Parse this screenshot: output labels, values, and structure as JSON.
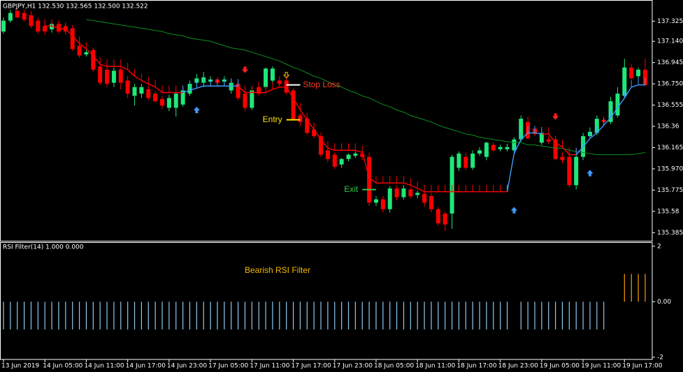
{
  "chart_data": [
    {
      "type": "candlestick",
      "title": "GBPJPY,H1  132.530 132.565 132.500 132.522",
      "categories": [
        "13 Jun 2019",
        null,
        null,
        null,
        null,
        null,
        "14 Jun 05:00",
        null,
        null,
        null,
        null,
        null,
        "14 Jun 11:00",
        null,
        null,
        null,
        null,
        null,
        "14 Jun 17:00",
        null,
        null,
        null,
        null,
        null,
        "14 Jun 23:00",
        null,
        null,
        null,
        null,
        null,
        "17 Jun 05:00",
        null,
        null,
        null,
        null,
        null,
        "17 Jun 11:00",
        null,
        null,
        null,
        null,
        null,
        "17 Jun 17:00",
        null,
        null,
        null,
        null,
        null,
        "17 Jun 23:00",
        null,
        null,
        null,
        null,
        null,
        "18 Jun 05:00",
        null,
        null,
        null,
        null,
        null,
        "18 Jun 11:00",
        null,
        null,
        null,
        null,
        null,
        "18 Jun 17:00",
        null,
        null,
        null,
        null,
        null,
        "18 Jun 23:00",
        null,
        null,
        null,
        null,
        null,
        "19 Jun 05:00",
        null,
        null,
        null,
        null,
        null,
        "19 Jun 11:00",
        null,
        null,
        null,
        null,
        null,
        "19 Jun 17:00",
        null,
        null,
        null
      ],
      "ylim": [
        135.31,
        137.5
      ],
      "yticks": [
        137.325,
        {
          "value": 137.14,
          "label": "137.140"
        },
        136.945,
        {
          "value": 136.75,
          "label": "136.750"
        },
        136.555,
        136.36,
        136.165,
        {
          "value": 135.97,
          "label": "135.970"
        },
        135.775,
        135.58,
        135.385
      ],
      "series": [
        {
          "type": "candlestick",
          "up_color": "#1ee87a",
          "down_color": "#ff0000",
          "open": [
            137.23,
            137.33,
            137.42,
            137.4,
            137.38,
            137.33,
            137.28,
            137.25,
            137.3,
            137.28,
            137.26,
            137.1,
            137.02,
            137.06,
            136.91,
            136.88,
            136.76,
            136.88,
            136.78,
            136.64,
            136.66,
            136.7,
            136.66,
            136.61,
            136.53,
            136.53,
            136.56,
            136.66,
            136.76,
            136.76,
            136.77,
            136.79,
            136.77,
            136.69,
            136.75,
            136.66,
            136.53,
            136.72,
            136.72,
            136.78,
            136.78,
            136.78,
            136.69,
            136.46,
            136.43,
            136.33,
            136.27,
            136.14,
            136.1,
            136.01,
            136.06,
            136.09,
            136.11,
            136.08,
            135.66,
            135.69,
            135.6,
            135.79,
            135.71,
            135.78,
            135.73,
            135.74,
            135.72,
            135.6,
            135.56,
            135.56,
            135.98,
            136.08,
            135.98,
            136.11,
            136.08,
            136.19,
            136.15,
            136.15,
            136.14,
            136.24,
            136.4,
            136.34,
            136.21,
            136.24,
            136.24,
            136.08,
            136.08,
            135.82,
            136.08,
            136.27,
            136.3,
            136.42,
            136.4,
            136.46,
            136.64,
            136.9,
            136.82,
            136.88
          ],
          "high": [
            137.36,
            137.43,
            137.45,
            137.43,
            137.42,
            137.36,
            137.31,
            137.32,
            137.33,
            137.3,
            137.29,
            137.12,
            137.06,
            137.08,
            136.93,
            136.92,
            136.9,
            136.9,
            136.82,
            136.75,
            136.75,
            136.74,
            136.68,
            136.64,
            136.65,
            136.68,
            136.72,
            136.78,
            136.84,
            136.86,
            136.82,
            136.81,
            136.82,
            136.8,
            136.78,
            136.68,
            136.72,
            136.77,
            136.9,
            136.91,
            136.82,
            136.82,
            136.71,
            136.48,
            136.45,
            136.35,
            136.29,
            136.16,
            136.12,
            136.07,
            136.11,
            136.13,
            136.14,
            136.12,
            135.72,
            135.72,
            135.81,
            135.82,
            135.82,
            135.8,
            135.77,
            135.76,
            135.75,
            135.62,
            135.58,
            136.1,
            136.13,
            136.12,
            136.14,
            136.17,
            136.22,
            136.21,
            136.19,
            136.2,
            136.26,
            136.46,
            136.45,
            136.36,
            136.32,
            136.27,
            136.27,
            136.12,
            136.1,
            136.11,
            136.3,
            136.35,
            136.46,
            136.45,
            136.63,
            136.72,
            136.98,
            136.93,
            136.9,
            136.98
          ],
          "low": [
            137.21,
            137.31,
            137.35,
            137.32,
            137.26,
            137.21,
            137.2,
            137.22,
            137.21,
            137.2,
            137.05,
            136.99,
            137.0,
            136.86,
            136.74,
            136.72,
            136.72,
            136.7,
            136.62,
            136.55,
            136.62,
            136.6,
            136.58,
            136.52,
            136.5,
            136.45,
            136.54,
            136.64,
            136.72,
            136.72,
            136.74,
            136.74,
            136.74,
            136.66,
            136.6,
            136.5,
            136.51,
            136.64,
            136.7,
            136.76,
            136.73,
            136.65,
            136.41,
            136.36,
            136.28,
            136.25,
            136.08,
            136.03,
            135.97,
            135.98,
            136.04,
            136.07,
            136.05,
            135.63,
            135.63,
            135.57,
            135.57,
            135.68,
            135.69,
            135.7,
            135.7,
            135.62,
            135.57,
            135.45,
            135.4,
            135.42,
            135.95,
            135.96,
            135.96,
            136.09,
            136.05,
            136.13,
            136.13,
            136.13,
            136.12,
            136.22,
            136.24,
            136.27,
            136.19,
            136.2,
            136.05,
            136.02,
            135.8,
            135.78,
            136.05,
            136.25,
            136.28,
            136.39,
            136.38,
            136.44,
            136.62,
            136.79,
            136.8,
            136.73
          ],
          "close": [
            137.33,
            137.4,
            137.36,
            137.34,
            137.28,
            137.23,
            137.23,
            137.3,
            137.23,
            137.23,
            137.07,
            137.01,
            137.04,
            136.88,
            136.76,
            136.75,
            136.87,
            136.76,
            136.66,
            136.72,
            136.72,
            136.62,
            136.59,
            136.55,
            136.62,
            136.66,
            136.69,
            136.75,
            136.8,
            136.81,
            136.79,
            136.76,
            136.79,
            136.76,
            136.62,
            136.53,
            136.69,
            136.66,
            136.89,
            136.89,
            136.75,
            136.67,
            136.42,
            136.4,
            136.3,
            136.27,
            136.1,
            136.06,
            135.99,
            136.06,
            136.1,
            136.11,
            136.08,
            135.66,
            135.69,
            135.6,
            135.79,
            135.71,
            135.79,
            135.72,
            135.75,
            135.66,
            135.6,
            135.47,
            135.46,
            136.08,
            136.11,
            135.98,
            136.11,
            136.14,
            136.21,
            136.14,
            136.17,
            136.17,
            136.24,
            136.43,
            136.25,
            136.29,
            136.3,
            136.22,
            136.06,
            136.05,
            135.82,
            136.08,
            136.27,
            136.31,
            136.43,
            136.4,
            136.59,
            136.66,
            136.9,
            136.8,
            136.88,
            136.74
          ]
        },
        {
          "type": "line",
          "color": "#0f8f1f",
          "values": [
            null,
            null,
            null,
            null,
            null,
            null,
            null,
            null,
            null,
            null,
            null,
            null,
            137.34,
            137.33,
            137.32,
            137.31,
            137.3,
            137.29,
            137.28,
            137.27,
            137.26,
            137.25,
            137.24,
            137.23,
            137.21,
            137.2,
            137.19,
            137.17,
            137.16,
            137.15,
            137.14,
            137.12,
            137.1,
            137.08,
            137.07,
            137.06,
            137.04,
            137.02,
            137.0,
            136.98,
            136.96,
            136.93,
            136.9,
            136.88,
            136.85,
            136.82,
            136.8,
            136.77,
            136.74,
            136.72,
            136.69,
            136.67,
            136.64,
            136.62,
            136.59,
            136.56,
            136.54,
            136.51,
            136.49,
            136.46,
            136.44,
            136.42,
            136.4,
            136.37,
            136.35,
            136.33,
            136.31,
            136.29,
            136.28,
            136.26,
            136.25,
            136.24,
            136.23,
            136.22,
            136.21,
            136.21,
            136.19,
            136.19,
            136.18,
            136.17,
            136.16,
            136.16,
            136.14,
            136.13,
            136.12,
            136.11,
            136.1,
            136.1,
            136.1,
            136.1,
            136.1,
            136.1,
            136.11,
            136.12
          ]
        },
        {
          "type": "line",
          "color": "#ff0000",
          "stubs": true,
          "values": [
            null,
            null,
            null,
            null,
            null,
            null,
            137.28,
            137.28,
            137.26,
            137.25,
            137.19,
            137.12,
            137.07,
            137.01,
            136.93,
            136.91,
            136.91,
            136.91,
            136.88,
            136.82,
            136.78,
            136.75,
            136.72,
            136.67,
            136.67,
            136.67,
            136.67,
            null,
            null,
            null,
            null,
            null,
            null,
            null,
            136.73,
            136.67,
            136.67,
            136.67,
            136.67,
            136.7,
            136.72,
            136.72,
            136.62,
            136.51,
            136.42,
            136.33,
            136.24,
            136.16,
            136.14,
            136.14,
            136.14,
            136.14,
            136.12,
            135.89,
            135.84,
            135.84,
            135.84,
            135.84,
            135.84,
            135.82,
            135.79,
            135.76,
            135.76,
            135.76,
            135.76,
            135.76,
            135.76,
            135.76,
            135.76,
            135.76,
            135.76,
            135.76,
            135.76,
            135.76,
            null,
            null,
            null,
            null,
            136.29,
            136.29,
            136.21,
            136.17,
            136.1,
            136.1,
            null,
            null,
            null,
            null,
            null,
            null,
            null,
            null,
            null,
            null
          ]
        },
        {
          "type": "line",
          "color": "#3d9bff",
          "stubs": true,
          "values": [
            null,
            null,
            null,
            null,
            null,
            null,
            null,
            null,
            null,
            null,
            null,
            null,
            null,
            null,
            null,
            null,
            null,
            null,
            null,
            null,
            null,
            null,
            null,
            null,
            null,
            null,
            136.67,
            136.69,
            136.71,
            136.73,
            136.73,
            136.73,
            136.73,
            136.73,
            136.73,
            null,
            null,
            null,
            null,
            null,
            null,
            null,
            null,
            null,
            null,
            null,
            null,
            null,
            null,
            null,
            null,
            null,
            null,
            null,
            null,
            null,
            null,
            null,
            null,
            null,
            null,
            null,
            null,
            null,
            null,
            null,
            null,
            null,
            null,
            null,
            null,
            null,
            null,
            135.76,
            136.11,
            136.24,
            136.3,
            136.3,
            136.29,
            null,
            null,
            null,
            null,
            136.1,
            136.17,
            136.25,
            136.3,
            136.37,
            136.44,
            136.53,
            136.62,
            136.72,
            136.74,
            136.74
          ]
        }
      ],
      "signals": [
        {
          "i": 28,
          "value": 136.51,
          "dir": "up",
          "color": "#3d9bff"
        },
        {
          "i": 35,
          "value": 136.88,
          "dir": "down",
          "color": "#ff2020"
        },
        {
          "i": 41,
          "value": 136.83,
          "dir": "down",
          "color": "#ffc000",
          "hollow": true
        },
        {
          "i": 74,
          "value": 135.59,
          "dir": "up",
          "color": "#3d9bff"
        },
        {
          "i": 80,
          "value": 136.45,
          "dir": "down",
          "color": "#ff2020"
        },
        {
          "i": 85,
          "value": 135.93,
          "dir": "up",
          "color": "#3d9bff"
        }
      ],
      "annotations": [
        {
          "text": "Stop Loss",
          "color": "#ff3d1f",
          "line_color": "#ffffff",
          "from": 41,
          "to": 43,
          "value": 136.74,
          "side": "right"
        },
        {
          "text": "Entry",
          "color": "#ffe400",
          "line_color": "#ffe400",
          "from": 41,
          "to": 43,
          "value": 136.42,
          "side": "left"
        },
        {
          "text": "Exit",
          "color": "#31c948",
          "line_color": "#31c948",
          "from": 52,
          "to": 54,
          "value": 135.78,
          "side": "left"
        }
      ]
    },
    {
      "type": "bar",
      "title": "RSI Filter(14) 1.000 0.000",
      "note": "Bearish RSI Filter",
      "note_color": "#f5b800",
      "ylim": [
        -2.08,
        2.12
      ],
      "yticks": [
        2,
        {
          "value": 0,
          "label": "0.00"
        },
        -2
      ],
      "positive_color": "#ff9f00",
      "negative_color": "#8ecbef",
      "values": [
        -1,
        -1,
        -1,
        -1,
        -1,
        -1,
        -1,
        -1,
        -1,
        -1,
        -1,
        -1,
        -1,
        -1,
        -1,
        -1,
        -1,
        -1,
        -1,
        -1,
        -1,
        -1,
        -1,
        -1,
        -1,
        -1,
        -1,
        -1,
        -1,
        -1,
        -1,
        -1,
        -1,
        -1,
        -1,
        -1,
        -1,
        -1,
        -1,
        -1,
        -1,
        -1,
        -1,
        -1,
        -1,
        -1,
        -1,
        -1,
        -1,
        -1,
        -1,
        -1,
        -1,
        -1,
        -1,
        -1,
        -1,
        -1,
        -1,
        -1,
        -1,
        -1,
        -1,
        -1,
        -1,
        -1,
        -1,
        -1,
        -1,
        -1,
        -1,
        -1,
        -1,
        -1,
        0,
        -1,
        -1,
        -1,
        -1,
        -1,
        -1,
        -1,
        -1,
        -1,
        -1,
        -1,
        -1,
        -1,
        0,
        0,
        1,
        1,
        1,
        1
      ]
    }
  ]
}
